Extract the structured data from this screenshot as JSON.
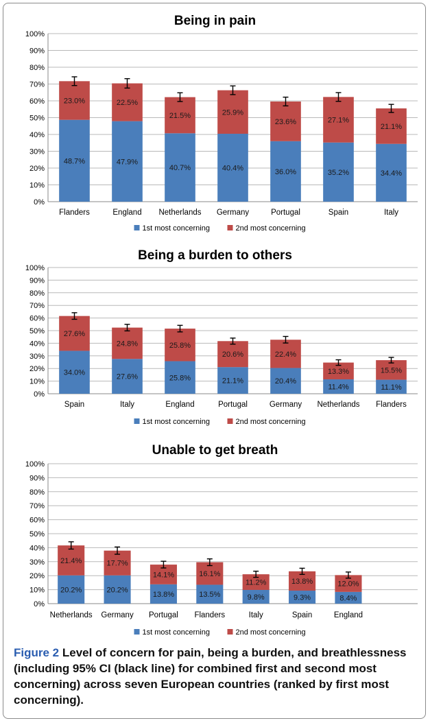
{
  "colors": {
    "first": "#4a7ebb",
    "second": "#be4b48",
    "grid": "#b8b8b8",
    "error_bar": "#000000"
  },
  "legend": {
    "first": "1st most concerning",
    "second": "2nd most concerning"
  },
  "caption": {
    "label": "Figure 2",
    "text": "Level of concern for pain, being a burden, and breathlessness (including 95% CI (black line) for combined first and second most concerning) across seven European countries (ranked by first most concerning)."
  },
  "chart_data": [
    {
      "type": "bar",
      "stacked": true,
      "title": "Being in pain",
      "categories": [
        "Flanders",
        "England",
        "Netherlands",
        "Germany",
        "Portugal",
        "Spain",
        "Italy"
      ],
      "series": [
        {
          "name": "1st most concerning",
          "values": [
            48.7,
            47.9,
            40.7,
            40.4,
            36.0,
            35.2,
            34.4
          ]
        },
        {
          "name": "2nd most concerning",
          "values": [
            23.0,
            22.5,
            21.5,
            25.9,
            23.6,
            27.1,
            21.1
          ]
        }
      ],
      "ci_half_width": [
        2.6,
        2.8,
        2.6,
        2.6,
        2.6,
        2.6,
        2.4
      ],
      "ylim": [
        0,
        100
      ],
      "yticks": [
        "0%",
        "10%",
        "20%",
        "30%",
        "40%",
        "50%",
        "60%",
        "70%",
        "80%",
        "90%",
        "100%"
      ],
      "grid": true,
      "legend_position": "bottom"
    },
    {
      "type": "bar",
      "stacked": true,
      "title": "Being a burden to others",
      "categories": [
        "Spain",
        "Italy",
        "England",
        "Portugal",
        "Germany",
        "Netherlands",
        "Flanders"
      ],
      "series": [
        {
          "name": "1st most concerning",
          "values": [
            34.0,
            27.6,
            25.8,
            21.1,
            20.4,
            11.4,
            11.1
          ]
        },
        {
          "name": "2nd most concerning",
          "values": [
            27.6,
            24.8,
            25.8,
            20.6,
            22.4,
            13.3,
            15.5
          ]
        }
      ],
      "ci_half_width": [
        2.6,
        2.6,
        2.6,
        2.4,
        2.6,
        2.2,
        2.2
      ],
      "ylim": [
        0,
        100
      ],
      "yticks": [
        "0%",
        "10%",
        "20%",
        "30%",
        "40%",
        "50%",
        "60%",
        "70%",
        "80%",
        "90%",
        "100%"
      ],
      "grid": true,
      "legend_position": "bottom"
    },
    {
      "type": "bar",
      "stacked": true,
      "title": "Unable to get breath",
      "categories": [
        "Netherlands",
        "Germany",
        "Portugal",
        "Flanders",
        "Italy",
        "Spain",
        "England"
      ],
      "series": [
        {
          "name": "1st most concerning",
          "values": [
            20.2,
            20.2,
            13.8,
            13.5,
            9.8,
            9.3,
            8.4
          ]
        },
        {
          "name": "2nd most concerning",
          "values": [
            21.4,
            17.7,
            14.1,
            16.1,
            11.2,
            13.8,
            12.0
          ]
        }
      ],
      "ci_half_width": [
        2.6,
        2.6,
        2.4,
        2.4,
        2.2,
        2.2,
        2.2
      ],
      "ylim": [
        0,
        100
      ],
      "yticks": [
        "0%",
        "10%",
        "20%",
        "30%",
        "40%",
        "50%",
        "60%",
        "70%",
        "80%",
        "90%",
        "100%"
      ],
      "grid": true,
      "legend_position": "bottom",
      "empty_slots": 1
    }
  ]
}
